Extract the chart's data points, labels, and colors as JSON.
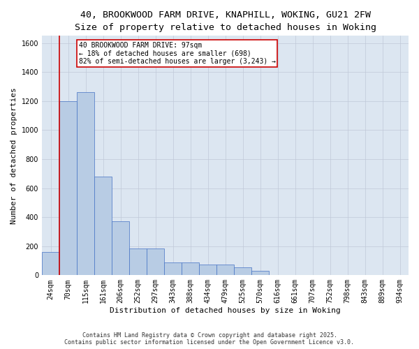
{
  "title_line1": "40, BROOKWOOD FARM DRIVE, KNAPHILL, WOKING, GU21 2FW",
  "title_line2": "Size of property relative to detached houses in Woking",
  "xlabel": "Distribution of detached houses by size in Woking",
  "ylabel": "Number of detached properties",
  "categories": [
    "24sqm",
    "70sqm",
    "115sqm",
    "161sqm",
    "206sqm",
    "252sqm",
    "297sqm",
    "343sqm",
    "388sqm",
    "434sqm",
    "479sqm",
    "525sqm",
    "570sqm",
    "616sqm",
    "661sqm",
    "707sqm",
    "752sqm",
    "798sqm",
    "843sqm",
    "889sqm",
    "934sqm"
  ],
  "values": [
    160,
    1200,
    1260,
    680,
    370,
    185,
    185,
    90,
    90,
    75,
    75,
    55,
    30,
    0,
    0,
    0,
    0,
    0,
    0,
    0,
    0
  ],
  "bar_color": "#b8cce4",
  "bar_edge_color": "#4472c4",
  "vline_position": 0.5,
  "vline_color": "#cc0000",
  "annotation_text": "40 BROOKWOOD FARM DRIVE: 97sqm\n← 18% of detached houses are smaller (698)\n82% of semi-detached houses are larger (3,243) →",
  "annotation_box_color": "#ffffff",
  "annotation_box_edge": "#cc0000",
  "grid_color": "#c0c8d8",
  "background_color": "#dce6f1",
  "ylim": [
    0,
    1650
  ],
  "yticks": [
    0,
    200,
    400,
    600,
    800,
    1000,
    1200,
    1400,
    1600
  ],
  "footer": "Contains HM Land Registry data © Crown copyright and database right 2025.\nContains public sector information licensed under the Open Government Licence v3.0.",
  "title_fontsize": 9.5,
  "subtitle_fontsize": 8.5,
  "tick_fontsize": 7,
  "label_fontsize": 8,
  "annotation_fontsize": 7,
  "footer_fontsize": 6
}
